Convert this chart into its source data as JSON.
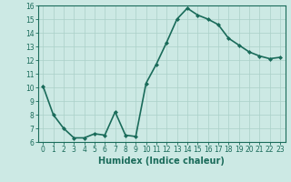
{
  "x": [
    0,
    1,
    2,
    3,
    4,
    5,
    6,
    7,
    8,
    9,
    10,
    11,
    12,
    13,
    14,
    15,
    16,
    17,
    18,
    19,
    20,
    21,
    22,
    23
  ],
  "y": [
    10.1,
    8.0,
    7.0,
    6.3,
    6.3,
    6.6,
    6.5,
    8.2,
    6.5,
    6.4,
    10.3,
    11.7,
    13.3,
    15.0,
    15.8,
    15.3,
    15.0,
    14.6,
    13.6,
    13.1,
    12.6,
    12.3,
    12.1,
    12.2
  ],
  "line_color": "#1a6b5a",
  "marker": "D",
  "marker_size": 2,
  "background_color": "#cce9e4",
  "grid_color": "#aad0c8",
  "xlabel": "Humidex (Indice chaleur)",
  "xlim": [
    -0.5,
    23.5
  ],
  "ylim": [
    6,
    16
  ],
  "yticks": [
    6,
    7,
    8,
    9,
    10,
    11,
    12,
    13,
    14,
    15,
    16
  ],
  "xticks": [
    0,
    1,
    2,
    3,
    4,
    5,
    6,
    7,
    8,
    9,
    10,
    11,
    12,
    13,
    14,
    15,
    16,
    17,
    18,
    19,
    20,
    21,
    22,
    23
  ],
  "tick_fontsize": 5.5,
  "xlabel_fontsize": 7.0,
  "linewidth": 1.2
}
